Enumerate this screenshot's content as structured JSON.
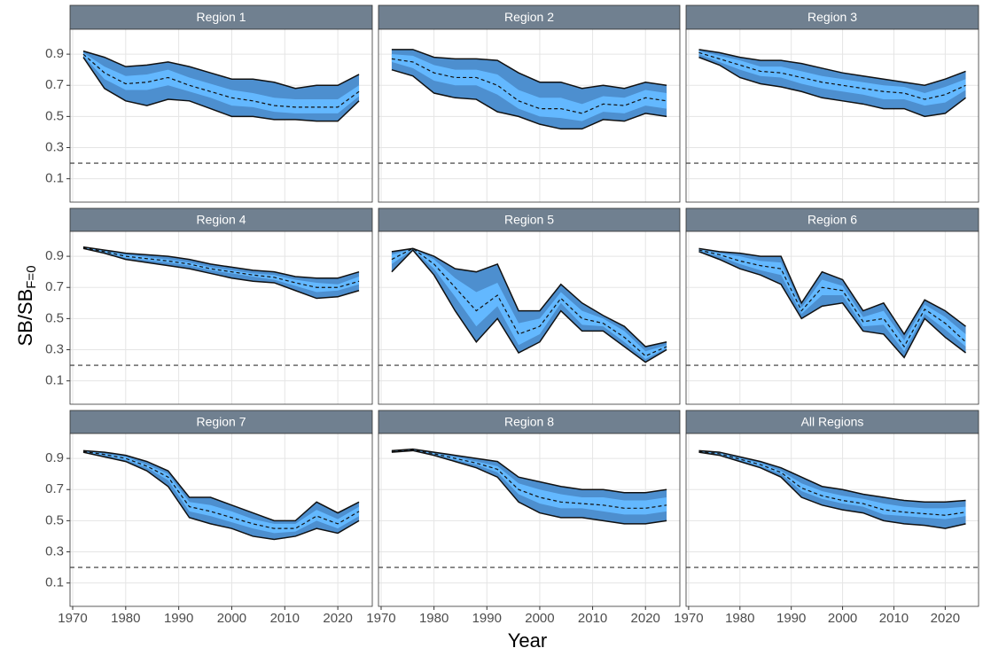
{
  "chart_data": {
    "type": "ribbon",
    "xlabel": "Year",
    "ylabel": "SB/SB",
    "ylabel_sub": "F=0",
    "x": [
      1972,
      1976,
      1980,
      1984,
      1988,
      1992,
      1996,
      2000,
      2004,
      2008,
      2012,
      2016,
      2020,
      2024
    ],
    "xlim": [
      1969.5,
      2026.5
    ],
    "xticks": [
      1970,
      1980,
      1990,
      2000,
      2010,
      2020
    ],
    "ylim": [
      -0.05,
      1.06
    ],
    "yticks": [
      0.1,
      0.3,
      0.5,
      0.7,
      0.9
    ],
    "reference_line": 0.2,
    "grid": true,
    "outer_color": "#4d8fcf",
    "inner_color": "#63b8ff",
    "strip_color": "#708090",
    "panels": [
      {
        "title": "Region 1",
        "outer_high": [
          0.92,
          0.88,
          0.82,
          0.83,
          0.85,
          0.82,
          0.78,
          0.74,
          0.74,
          0.72,
          0.68,
          0.7,
          0.7,
          0.77
        ],
        "outer_low": [
          0.88,
          0.68,
          0.6,
          0.57,
          0.61,
          0.6,
          0.55,
          0.5,
          0.5,
          0.48,
          0.48,
          0.47,
          0.47,
          0.6
        ],
        "inner_high": [
          0.91,
          0.82,
          0.76,
          0.77,
          0.8,
          0.75,
          0.71,
          0.67,
          0.65,
          0.62,
          0.61,
          0.61,
          0.61,
          0.7
        ],
        "inner_low": [
          0.89,
          0.74,
          0.67,
          0.67,
          0.7,
          0.66,
          0.62,
          0.57,
          0.56,
          0.53,
          0.52,
          0.52,
          0.52,
          0.63
        ],
        "median": [
          0.9,
          0.78,
          0.71,
          0.72,
          0.75,
          0.7,
          0.66,
          0.62,
          0.6,
          0.57,
          0.56,
          0.56,
          0.56,
          0.66
        ]
      },
      {
        "title": "Region 2",
        "outer_high": [
          0.93,
          0.93,
          0.88,
          0.87,
          0.87,
          0.86,
          0.78,
          0.72,
          0.72,
          0.68,
          0.7,
          0.68,
          0.72,
          0.7
        ],
        "outer_low": [
          0.8,
          0.76,
          0.65,
          0.62,
          0.61,
          0.53,
          0.5,
          0.45,
          0.42,
          0.42,
          0.48,
          0.47,
          0.52,
          0.5
        ],
        "inner_high": [
          0.9,
          0.89,
          0.83,
          0.8,
          0.8,
          0.77,
          0.67,
          0.62,
          0.62,
          0.58,
          0.63,
          0.62,
          0.67,
          0.65
        ],
        "inner_low": [
          0.85,
          0.81,
          0.73,
          0.7,
          0.7,
          0.64,
          0.55,
          0.5,
          0.49,
          0.47,
          0.53,
          0.52,
          0.57,
          0.55
        ],
        "median": [
          0.87,
          0.85,
          0.78,
          0.75,
          0.75,
          0.7,
          0.6,
          0.55,
          0.55,
          0.52,
          0.58,
          0.57,
          0.62,
          0.6
        ]
      },
      {
        "title": "Region 3",
        "outer_high": [
          0.93,
          0.91,
          0.88,
          0.86,
          0.86,
          0.84,
          0.81,
          0.78,
          0.76,
          0.74,
          0.72,
          0.7,
          0.74,
          0.79
        ],
        "outer_low": [
          0.88,
          0.83,
          0.75,
          0.71,
          0.69,
          0.66,
          0.62,
          0.6,
          0.58,
          0.55,
          0.55,
          0.5,
          0.52,
          0.62
        ],
        "inner_high": [
          0.92,
          0.89,
          0.86,
          0.82,
          0.82,
          0.79,
          0.76,
          0.74,
          0.72,
          0.7,
          0.69,
          0.65,
          0.69,
          0.74
        ],
        "inner_low": [
          0.9,
          0.85,
          0.8,
          0.76,
          0.75,
          0.71,
          0.68,
          0.66,
          0.64,
          0.61,
          0.61,
          0.57,
          0.59,
          0.67
        ],
        "median": [
          0.91,
          0.87,
          0.83,
          0.79,
          0.78,
          0.75,
          0.72,
          0.7,
          0.68,
          0.66,
          0.65,
          0.61,
          0.64,
          0.7
        ]
      },
      {
        "title": "Region 4",
        "outer_high": [
          0.96,
          0.94,
          0.92,
          0.91,
          0.9,
          0.88,
          0.85,
          0.83,
          0.81,
          0.8,
          0.77,
          0.76,
          0.76,
          0.8
        ],
        "outer_low": [
          0.95,
          0.92,
          0.88,
          0.86,
          0.84,
          0.82,
          0.79,
          0.76,
          0.74,
          0.73,
          0.68,
          0.63,
          0.64,
          0.68
        ],
        "inner_high": [
          0.96,
          0.935,
          0.91,
          0.895,
          0.88,
          0.86,
          0.83,
          0.81,
          0.79,
          0.78,
          0.75,
          0.73,
          0.72,
          0.77
        ],
        "inner_low": [
          0.95,
          0.925,
          0.89,
          0.875,
          0.86,
          0.84,
          0.81,
          0.79,
          0.77,
          0.75,
          0.71,
          0.67,
          0.68,
          0.72
        ],
        "median": [
          0.955,
          0.93,
          0.9,
          0.885,
          0.87,
          0.85,
          0.82,
          0.8,
          0.78,
          0.765,
          0.73,
          0.7,
          0.7,
          0.74
        ]
      },
      {
        "title": "Region 5",
        "outer_high": [
          0.93,
          0.95,
          0.9,
          0.82,
          0.8,
          0.85,
          0.55,
          0.55,
          0.72,
          0.6,
          0.52,
          0.45,
          0.32,
          0.35
        ],
        "outer_low": [
          0.8,
          0.94,
          0.78,
          0.55,
          0.35,
          0.5,
          0.28,
          0.35,
          0.55,
          0.42,
          0.42,
          0.32,
          0.22,
          0.3
        ],
        "inner_high": [
          0.91,
          0.95,
          0.88,
          0.76,
          0.67,
          0.73,
          0.47,
          0.5,
          0.67,
          0.55,
          0.5,
          0.42,
          0.29,
          0.33
        ],
        "inner_low": [
          0.85,
          0.945,
          0.82,
          0.64,
          0.45,
          0.58,
          0.33,
          0.4,
          0.6,
          0.46,
          0.45,
          0.35,
          0.24,
          0.31
        ],
        "median": [
          0.88,
          0.95,
          0.85,
          0.7,
          0.55,
          0.65,
          0.4,
          0.45,
          0.63,
          0.5,
          0.47,
          0.38,
          0.26,
          0.32
        ]
      },
      {
        "title": "Region 6",
        "outer_high": [
          0.95,
          0.93,
          0.92,
          0.9,
          0.9,
          0.6,
          0.8,
          0.75,
          0.55,
          0.6,
          0.4,
          0.62,
          0.55,
          0.45
        ],
        "outer_low": [
          0.93,
          0.88,
          0.82,
          0.78,
          0.72,
          0.5,
          0.58,
          0.6,
          0.42,
          0.4,
          0.25,
          0.5,
          0.38,
          0.28
        ],
        "inner_high": [
          0.945,
          0.92,
          0.9,
          0.87,
          0.86,
          0.57,
          0.75,
          0.71,
          0.51,
          0.55,
          0.36,
          0.59,
          0.51,
          0.4
        ],
        "inner_low": [
          0.935,
          0.9,
          0.85,
          0.81,
          0.78,
          0.53,
          0.65,
          0.65,
          0.45,
          0.46,
          0.29,
          0.53,
          0.43,
          0.32
        ],
        "median": [
          0.94,
          0.91,
          0.87,
          0.84,
          0.82,
          0.55,
          0.7,
          0.68,
          0.48,
          0.5,
          0.32,
          0.56,
          0.47,
          0.35
        ]
      },
      {
        "title": "Region 7",
        "outer_high": [
          0.95,
          0.94,
          0.92,
          0.88,
          0.82,
          0.65,
          0.65,
          0.6,
          0.55,
          0.5,
          0.5,
          0.62,
          0.55,
          0.62
        ],
        "outer_low": [
          0.94,
          0.91,
          0.88,
          0.82,
          0.72,
          0.52,
          0.48,
          0.45,
          0.4,
          0.38,
          0.4,
          0.45,
          0.42,
          0.5
        ],
        "inner_high": [
          0.95,
          0.93,
          0.91,
          0.86,
          0.8,
          0.62,
          0.6,
          0.56,
          0.51,
          0.48,
          0.48,
          0.57,
          0.51,
          0.59
        ],
        "inner_low": [
          0.94,
          0.92,
          0.89,
          0.84,
          0.76,
          0.56,
          0.53,
          0.49,
          0.45,
          0.42,
          0.43,
          0.5,
          0.45,
          0.53
        ],
        "median": [
          0.945,
          0.925,
          0.9,
          0.85,
          0.78,
          0.59,
          0.56,
          0.52,
          0.48,
          0.45,
          0.45,
          0.53,
          0.48,
          0.56
        ]
      },
      {
        "title": "Region 8",
        "outer_high": [
          0.95,
          0.96,
          0.94,
          0.92,
          0.9,
          0.88,
          0.78,
          0.75,
          0.72,
          0.7,
          0.7,
          0.68,
          0.68,
          0.7
        ],
        "outer_low": [
          0.94,
          0.95,
          0.92,
          0.88,
          0.84,
          0.78,
          0.62,
          0.55,
          0.52,
          0.52,
          0.5,
          0.48,
          0.48,
          0.5
        ],
        "inner_high": [
          0.95,
          0.96,
          0.935,
          0.91,
          0.88,
          0.85,
          0.74,
          0.7,
          0.67,
          0.65,
          0.65,
          0.63,
          0.63,
          0.65
        ],
        "inner_low": [
          0.94,
          0.955,
          0.925,
          0.89,
          0.86,
          0.81,
          0.67,
          0.61,
          0.58,
          0.58,
          0.56,
          0.54,
          0.54,
          0.56
        ],
        "median": [
          0.945,
          0.955,
          0.93,
          0.9,
          0.87,
          0.83,
          0.7,
          0.65,
          0.62,
          0.61,
          0.6,
          0.58,
          0.58,
          0.6
        ]
      },
      {
        "title": "All Regions",
        "outer_high": [
          0.95,
          0.94,
          0.91,
          0.88,
          0.84,
          0.78,
          0.72,
          0.7,
          0.67,
          0.65,
          0.63,
          0.62,
          0.62,
          0.63
        ],
        "outer_low": [
          0.94,
          0.92,
          0.88,
          0.84,
          0.78,
          0.65,
          0.6,
          0.57,
          0.55,
          0.5,
          0.48,
          0.47,
          0.45,
          0.48
        ],
        "inner_high": [
          0.95,
          0.935,
          0.9,
          0.87,
          0.82,
          0.74,
          0.69,
          0.66,
          0.64,
          0.61,
          0.59,
          0.58,
          0.58,
          0.59
        ],
        "inner_low": [
          0.94,
          0.925,
          0.89,
          0.85,
          0.8,
          0.69,
          0.64,
          0.61,
          0.59,
          0.54,
          0.53,
          0.52,
          0.51,
          0.53
        ],
        "median": [
          0.945,
          0.93,
          0.895,
          0.86,
          0.81,
          0.71,
          0.66,
          0.63,
          0.61,
          0.57,
          0.555,
          0.545,
          0.535,
          0.555
        ]
      }
    ]
  }
}
